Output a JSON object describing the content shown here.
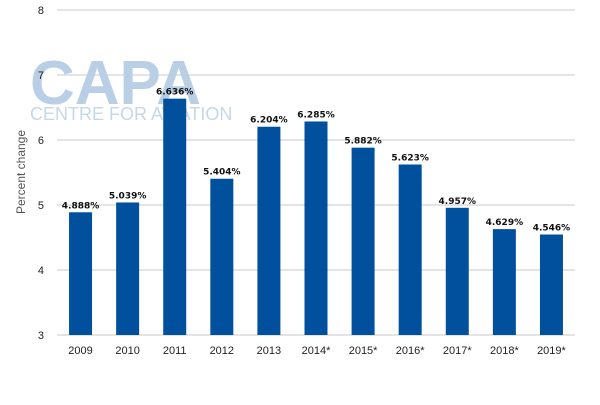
{
  "watermark": {
    "brand": "CAPA",
    "tagline": "CENTRE FOR AVIATION"
  },
  "colors": {
    "bar": "#00509e",
    "grid": "#c8c8c8",
    "watermark": "#b9cfe6"
  },
  "chart_data": {
    "type": "bar",
    "title": "",
    "xlabel": "",
    "ylabel": "Percent change",
    "ylim": [
      3,
      8
    ],
    "yticks": [
      3,
      4,
      5,
      6,
      7,
      8
    ],
    "grid": true,
    "categories": [
      "2009",
      "2010",
      "2011",
      "2012",
      "2013",
      "2014*",
      "2015*",
      "2016*",
      "2017*",
      "2018*",
      "2019*"
    ],
    "values": [
      4.888,
      5.039,
      6.636,
      5.404,
      6.204,
      6.285,
      5.882,
      5.623,
      4.957,
      4.629,
      4.546
    ],
    "value_labels": [
      "4.888%",
      "5.039%",
      "6.636%",
      "5.404%",
      "6.204%",
      "6.285%",
      "5.882%",
      "5.623%",
      "4.957%",
      "4.629%",
      "4.546%"
    ]
  }
}
